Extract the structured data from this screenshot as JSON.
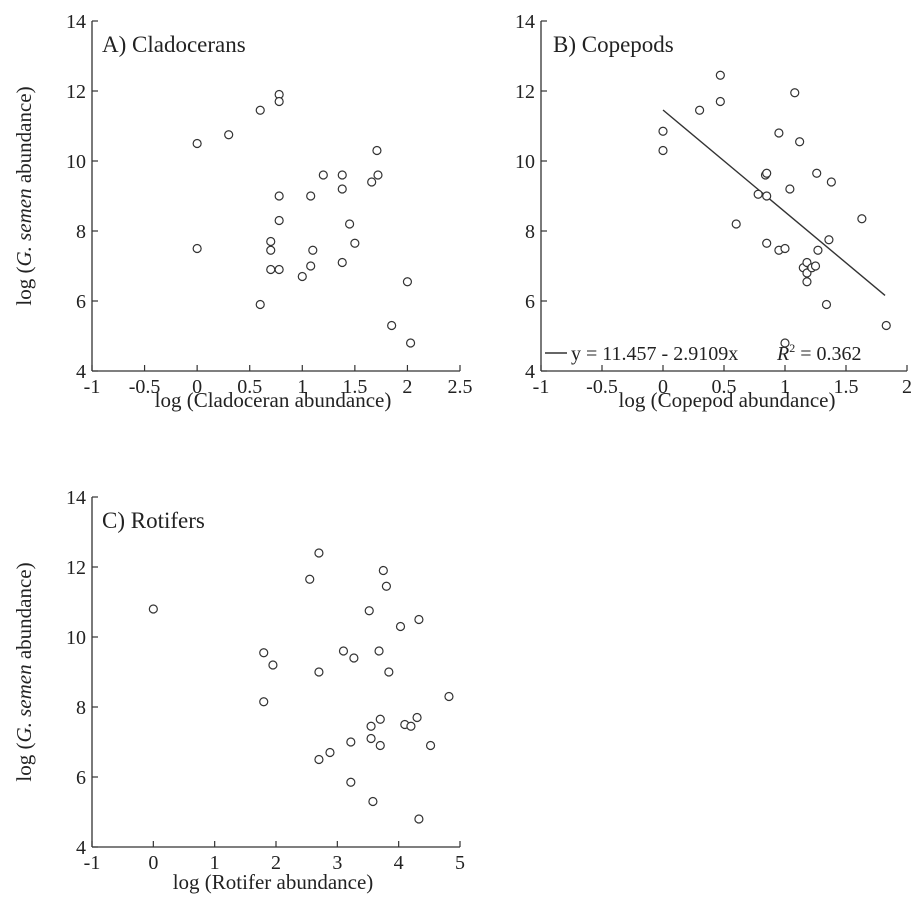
{
  "chart_data": [
    {
      "type": "scatter",
      "panel_label": "A) Cladocerans",
      "xlabel": "log (Cladoceran abundance)",
      "ylabel_prefix": "log (",
      "ylabel_italic": "G. semen",
      "ylabel_suffix": " abundance)",
      "xlim": [
        -1,
        2.5
      ],
      "ylim": [
        4,
        14
      ],
      "xticks": [
        -1,
        -0.5,
        0,
        0.5,
        1,
        1.5,
        2,
        2.5
      ],
      "xtick_labels": [
        "-1",
        "-0.5",
        "0",
        "0.5",
        "1",
        "1.5",
        "2",
        "2.5"
      ],
      "yticks": [
        4,
        6,
        8,
        10,
        12,
        14
      ],
      "ytick_labels": [
        "4",
        "6",
        "8",
        "10",
        "12",
        "14"
      ],
      "grid": false,
      "points": [
        {
          "x": 0.0,
          "y": 10.5
        },
        {
          "x": 0.0,
          "y": 7.5
        },
        {
          "x": 0.3,
          "y": 10.75
        },
        {
          "x": 0.6,
          "y": 11.45
        },
        {
          "x": 0.6,
          "y": 5.9
        },
        {
          "x": 0.7,
          "y": 7.7
        },
        {
          "x": 0.7,
          "y": 7.45
        },
        {
          "x": 0.7,
          "y": 6.9
        },
        {
          "x": 0.78,
          "y": 11.9
        },
        {
          "x": 0.78,
          "y": 11.7
        },
        {
          "x": 0.78,
          "y": 9.0
        },
        {
          "x": 0.78,
          "y": 8.3
        },
        {
          "x": 0.78,
          "y": 6.9
        },
        {
          "x": 1.0,
          "y": 6.7
        },
        {
          "x": 1.08,
          "y": 9.0
        },
        {
          "x": 1.08,
          "y": 7.0
        },
        {
          "x": 1.1,
          "y": 7.45
        },
        {
          "x": 1.2,
          "y": 9.6
        },
        {
          "x": 1.38,
          "y": 9.6
        },
        {
          "x": 1.38,
          "y": 9.2
        },
        {
          "x": 1.38,
          "y": 7.1
        },
        {
          "x": 1.45,
          "y": 8.2
        },
        {
          "x": 1.5,
          "y": 7.65
        },
        {
          "x": 1.66,
          "y": 9.4
        },
        {
          "x": 1.71,
          "y": 10.3
        },
        {
          "x": 1.72,
          "y": 9.6
        },
        {
          "x": 1.85,
          "y": 5.3
        },
        {
          "x": 2.0,
          "y": 6.55
        },
        {
          "x": 2.03,
          "y": 4.8
        }
      ]
    },
    {
      "type": "scatter",
      "panel_label": "B) Copepods",
      "xlabel": "log (Copepod abundance)",
      "xlim": [
        -1,
        2
      ],
      "ylim": [
        4,
        14
      ],
      "xticks": [
        -1,
        -0.5,
        0,
        0.5,
        1,
        1.5,
        2
      ],
      "xtick_labels": [
        "-1",
        "-0.5",
        "0",
        "0.5",
        "1",
        "1.5",
        "2"
      ],
      "yticks": [
        4,
        6,
        8,
        10,
        12,
        14
      ],
      "ytick_labels": [
        "4",
        "6",
        "8",
        "10",
        "12",
        "14"
      ],
      "grid": false,
      "regression": {
        "intercept": 11.457,
        "slope": -2.9109,
        "x_range": [
          0,
          1.82
        ]
      },
      "legend_equation": "y = 11.457 - 2.9109x",
      "legend_r2_symbol": "R",
      "legend_r2_sup": "2",
      "legend_r2_value": " = 0.362",
      "legend_placement": "bottom",
      "points": [
        {
          "x": 0.0,
          "y": 10.85
        },
        {
          "x": 0.0,
          "y": 10.3
        },
        {
          "x": 0.3,
          "y": 11.45
        },
        {
          "x": 0.47,
          "y": 12.45
        },
        {
          "x": 0.47,
          "y": 11.7
        },
        {
          "x": 0.6,
          "y": 8.2
        },
        {
          "x": 0.78,
          "y": 9.05
        },
        {
          "x": 0.84,
          "y": 9.6
        },
        {
          "x": 0.85,
          "y": 9.65
        },
        {
          "x": 0.85,
          "y": 9.0
        },
        {
          "x": 0.85,
          "y": 7.65
        },
        {
          "x": 0.95,
          "y": 10.8
        },
        {
          "x": 0.95,
          "y": 7.45
        },
        {
          "x": 1.0,
          "y": 7.5
        },
        {
          "x": 1.0,
          "y": 4.8
        },
        {
          "x": 1.04,
          "y": 9.2
        },
        {
          "x": 1.08,
          "y": 11.95
        },
        {
          "x": 1.12,
          "y": 10.55
        },
        {
          "x": 1.15,
          "y": 6.95
        },
        {
          "x": 1.18,
          "y": 7.1
        },
        {
          "x": 1.18,
          "y": 6.8
        },
        {
          "x": 1.18,
          "y": 6.55
        },
        {
          "x": 1.22,
          "y": 6.95
        },
        {
          "x": 1.25,
          "y": 7.0
        },
        {
          "x": 1.26,
          "y": 9.65
        },
        {
          "x": 1.27,
          "y": 7.45
        },
        {
          "x": 1.34,
          "y": 5.9
        },
        {
          "x": 1.36,
          "y": 7.75
        },
        {
          "x": 1.38,
          "y": 9.4
        },
        {
          "x": 1.63,
          "y": 8.35
        },
        {
          "x": 1.83,
          "y": 5.3
        }
      ]
    },
    {
      "type": "scatter",
      "panel_label": "C) Rotifers",
      "xlabel": "log (Rotifer abundance)",
      "xlim": [
        -1,
        5
      ],
      "ylim": [
        4,
        14
      ],
      "xticks": [
        -1,
        0,
        1,
        2,
        3,
        4,
        5
      ],
      "xtick_labels": [
        "-1",
        "0",
        "1",
        "2",
        "3",
        "4",
        "5"
      ],
      "yticks": [
        4,
        6,
        8,
        10,
        12,
        14
      ],
      "ytick_labels": [
        "4",
        "6",
        "8",
        "10",
        "12",
        "14"
      ],
      "grid": false,
      "points": [
        {
          "x": 0.0,
          "y": 10.8
        },
        {
          "x": 1.8,
          "y": 9.55
        },
        {
          "x": 1.8,
          "y": 8.15
        },
        {
          "x": 1.95,
          "y": 9.2
        },
        {
          "x": 2.55,
          "y": 11.65
        },
        {
          "x": 2.7,
          "y": 12.4
        },
        {
          "x": 2.7,
          "y": 9.0
        },
        {
          "x": 2.7,
          "y": 6.5
        },
        {
          "x": 2.88,
          "y": 6.7
        },
        {
          "x": 3.1,
          "y": 9.6
        },
        {
          "x": 3.22,
          "y": 7.0
        },
        {
          "x": 3.22,
          "y": 5.85
        },
        {
          "x": 3.27,
          "y": 9.4
        },
        {
          "x": 3.52,
          "y": 10.75
        },
        {
          "x": 3.55,
          "y": 7.45
        },
        {
          "x": 3.55,
          "y": 7.1
        },
        {
          "x": 3.58,
          "y": 5.3
        },
        {
          "x": 3.68,
          "y": 9.6
        },
        {
          "x": 3.7,
          "y": 7.65
        },
        {
          "x": 3.7,
          "y": 6.9
        },
        {
          "x": 3.75,
          "y": 11.9
        },
        {
          "x": 3.8,
          "y": 11.45
        },
        {
          "x": 3.84,
          "y": 9.0
        },
        {
          "x": 4.03,
          "y": 10.3
        },
        {
          "x": 4.1,
          "y": 7.5
        },
        {
          "x": 4.2,
          "y": 7.45
        },
        {
          "x": 4.3,
          "y": 7.7
        },
        {
          "x": 4.33,
          "y": 10.5
        },
        {
          "x": 4.33,
          "y": 4.8
        },
        {
          "x": 4.52,
          "y": 6.9
        },
        {
          "x": 4.82,
          "y": 8.3
        }
      ]
    }
  ]
}
